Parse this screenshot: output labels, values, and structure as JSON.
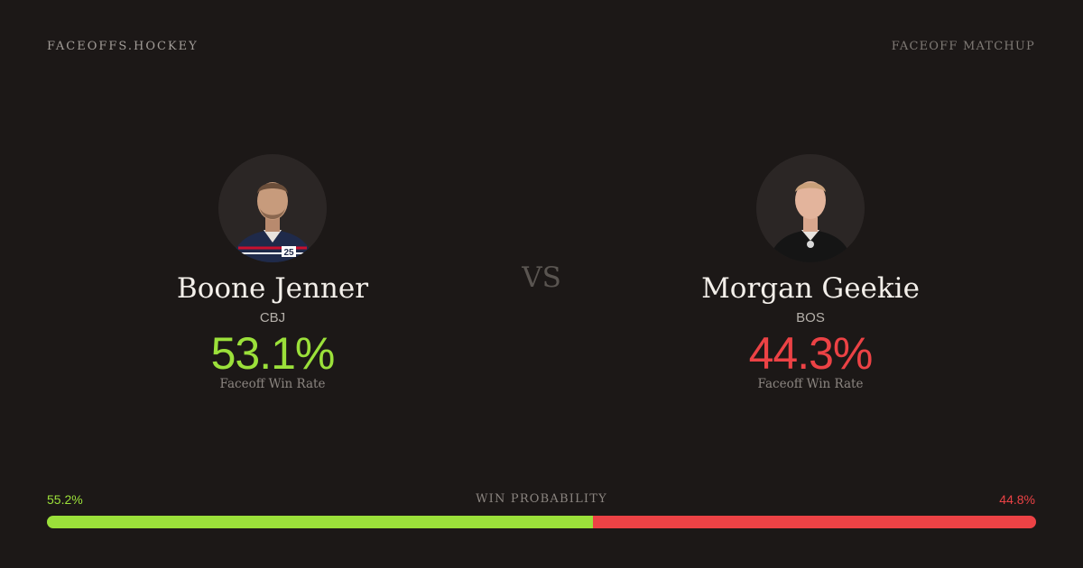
{
  "header": {
    "brand": "FACEOFFS.HOCKEY",
    "page_label": "FACEOFF MATCHUP"
  },
  "vs_label": "VS",
  "players": [
    {
      "name": "Boone Jenner",
      "team": "CBJ",
      "win_rate": "53.1%",
      "win_rate_label": "Faceoff Win Rate",
      "jersey_number": "25",
      "accent_color": "#9be03a",
      "jersey_color": "#1f2a4a"
    },
    {
      "name": "Morgan Geekie",
      "team": "BOS",
      "win_rate": "44.3%",
      "win_rate_label": "Faceoff Win Rate",
      "accent_color": "#ec4245",
      "jersey_color": "#151515"
    }
  ],
  "win_probability": {
    "title": "WIN PROBABILITY",
    "left_label": "55.2%",
    "right_label": "44.8%",
    "left_value": 55.2,
    "right_value": 44.8,
    "left_color": "#9be03a",
    "right_color": "#ec4245"
  }
}
